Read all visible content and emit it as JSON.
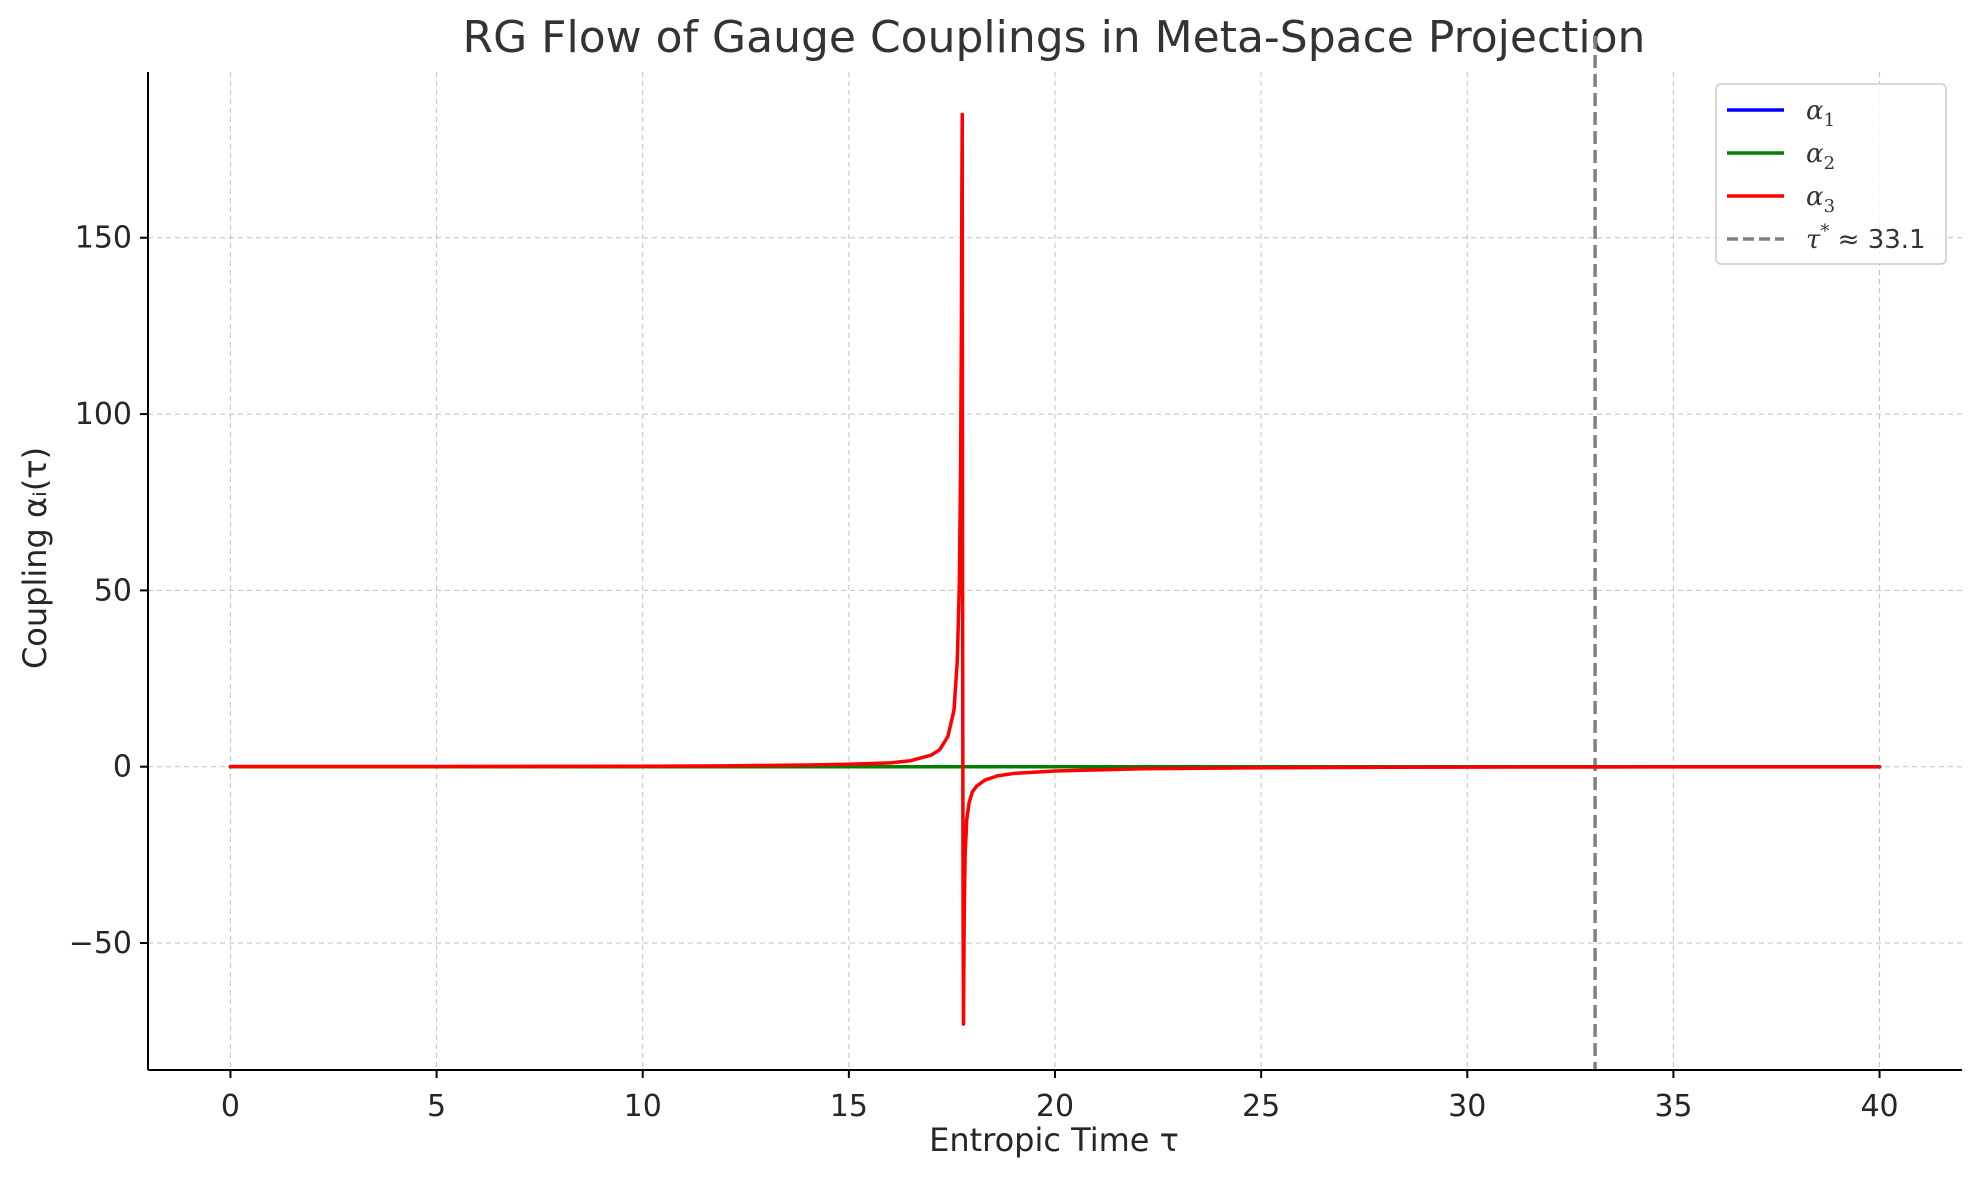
{
  "chart_data": {
    "type": "line",
    "title": "RG Flow of Gauge Couplings in Meta-Space Projection",
    "xlabel": "Entropic Time τ",
    "ylabel": "Coupling αᵢ(τ)",
    "xlim": [
      -2,
      42
    ],
    "ylim": [
      -86,
      197
    ],
    "xticks": [
      0,
      5,
      10,
      15,
      20,
      25,
      30,
      35,
      40
    ],
    "xtick_labels": [
      "0",
      "5",
      "10",
      "15",
      "20",
      "25",
      "30",
      "35",
      "40"
    ],
    "yticks": [
      -50,
      0,
      50,
      100,
      150
    ],
    "ytick_labels": [
      "−50",
      "0",
      "50",
      "100",
      "150"
    ],
    "grid": true,
    "legend_position": "top-right",
    "colors": {
      "alpha_1": "#0000ff",
      "alpha_2": "#008000",
      "alpha_3": "#ff0000",
      "tau_star": "#808080"
    },
    "series": [
      {
        "name": "α₁",
        "color": "#0000ff",
        "x": [
          0,
          5,
          10,
          15,
          17.5,
          17.75,
          18,
          20,
          25,
          30,
          35,
          40
        ],
        "y": [
          0.0,
          0.0,
          0.0,
          0.0,
          0.0,
          0.0,
          0.0,
          0.0,
          0.0,
          0.0,
          0.0,
          0.0
        ]
      },
      {
        "name": "α₂",
        "color": "#008000",
        "x": [
          0,
          5,
          10,
          15,
          17.5,
          17.75,
          18,
          20,
          25,
          30,
          35,
          40
        ],
        "y": [
          0.0,
          0.0,
          0.0,
          0.0,
          0.0,
          0.0,
          0.0,
          0.0,
          0.0,
          0.0,
          0.0,
          0.0
        ]
      },
      {
        "name": "α₃",
        "color": "#ff0000",
        "x": [
          0,
          5,
          10,
          12,
          14,
          15,
          16,
          16.5,
          17,
          17.2,
          17.4,
          17.55,
          17.63,
          17.68,
          17.71,
          17.73,
          17.74,
          17.75,
          17.76,
          17.77,
          17.78,
          17.79,
          17.8,
          17.82,
          17.86,
          17.92,
          18.0,
          18.1,
          18.3,
          18.6,
          19.0,
          20.0,
          22.0,
          25.0,
          30.0,
          33.0,
          35.0,
          40.0
        ],
        "y": [
          0.05,
          0.08,
          0.15,
          0.25,
          0.5,
          0.7,
          1.1,
          1.7,
          3.3,
          4.8,
          8.5,
          16,
          30,
          52,
          85,
          125,
          162,
          185,
          40,
          -40,
          -73,
          -55,
          -40,
          -25,
          -15,
          -10,
          -7,
          -5.5,
          -3.8,
          -2.6,
          -1.9,
          -1.2,
          -0.6,
          -0.3,
          -0.1,
          -0.07,
          -0.05,
          -0.03
        ]
      }
    ],
    "reference_lines": [
      {
        "name": "τ* ≈ 33.1",
        "orientation": "vertical",
        "x": 33.1,
        "style": "dashed",
        "color": "#808080"
      }
    ],
    "legend": [
      {
        "label_main": "α",
        "label_sub": "1",
        "color": "#0000ff",
        "style": "solid"
      },
      {
        "label_main": "α",
        "label_sub": "2",
        "color": "#008000",
        "style": "solid"
      },
      {
        "label_main": "α",
        "label_sub": "3",
        "color": "#ff0000",
        "style": "solid"
      },
      {
        "label_main": "τ",
        "label_sup": "*",
        "label_rest": " ≈ 33.1",
        "color": "#808080",
        "style": "dashed"
      }
    ]
  }
}
